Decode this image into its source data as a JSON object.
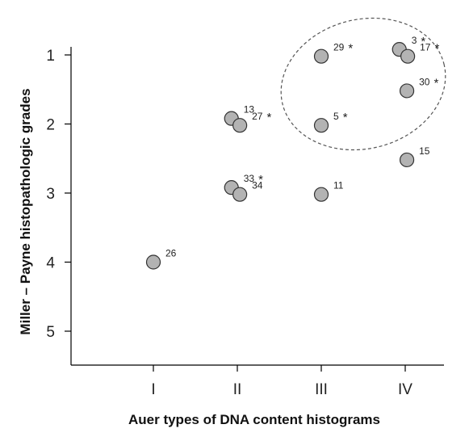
{
  "chart_data": {
    "type": "scatter",
    "title": "",
    "xlabel": "Auer types of DNA content histograms",
    "ylabel": "Miller – Payne histopathologic grades",
    "x_categories": [
      "I",
      "II",
      "III",
      "IV"
    ],
    "y_ticks": [
      1,
      2,
      3,
      4,
      5
    ],
    "ylim": [
      5.5,
      0.7
    ],
    "y_inverted": true,
    "grid": false,
    "legend": "none",
    "annotation": "dashed ellipse enclosing cases 29, 3, 17, 30 and 5",
    "colors": {
      "marker_fill": "#b3b3b3",
      "marker_stroke": "#333333",
      "axis": "#000000"
    },
    "points": [
      {
        "label": "26",
        "x": 1.0,
        "y": 4.0,
        "star": false
      },
      {
        "label": "13",
        "x": 1.93,
        "y": 1.92,
        "star": false
      },
      {
        "label": "27",
        "x": 2.03,
        "y": 2.02,
        "star": true
      },
      {
        "label": "33",
        "x": 1.93,
        "y": 2.92,
        "star": true
      },
      {
        "label": "34",
        "x": 2.03,
        "y": 3.02,
        "star": false
      },
      {
        "label": "29",
        "x": 3.0,
        "y": 1.02,
        "star": true
      },
      {
        "label": "5",
        "x": 3.0,
        "y": 2.02,
        "star": true
      },
      {
        "label": "11",
        "x": 3.0,
        "y": 3.02,
        "star": false
      },
      {
        "label": "3",
        "x": 3.93,
        "y": 0.92,
        "star": true
      },
      {
        "label": "17",
        "x": 4.03,
        "y": 1.02,
        "star": true
      },
      {
        "label": "30",
        "x": 4.02,
        "y": 1.52,
        "star": true
      },
      {
        "label": "15",
        "x": 4.02,
        "y": 2.52,
        "star": false
      }
    ]
  }
}
